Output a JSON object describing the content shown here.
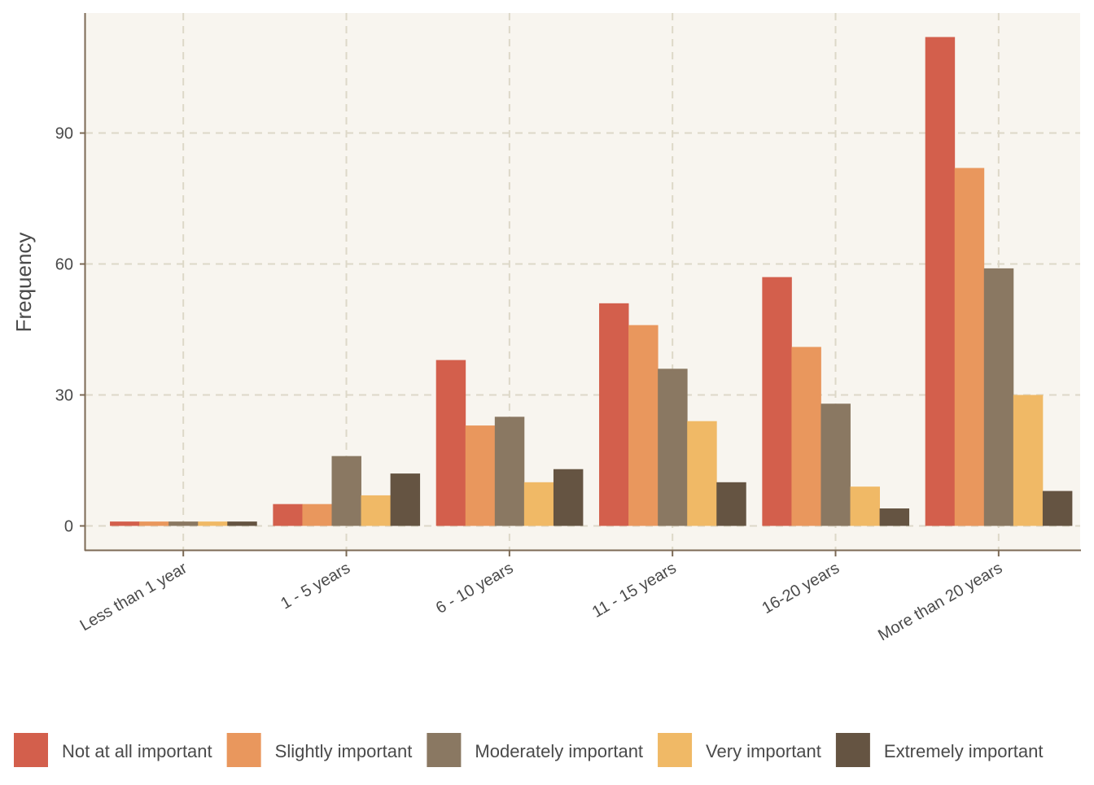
{
  "chart_data": {
    "type": "bar",
    "title": "",
    "xlabel": "",
    "ylabel": "Frequency",
    "categories": [
      "Less than 1 year",
      "1 - 5 years",
      "6 - 10 years",
      "11 - 15 years",
      "16-20 years",
      "More than 20 years"
    ],
    "series": [
      {
        "name": "Not at all important",
        "color": "#d35f4c",
        "values": [
          1,
          5,
          38,
          51,
          57,
          112
        ]
      },
      {
        "name": "Slightly important",
        "color": "#e9975d",
        "values": [
          1,
          5,
          23,
          46,
          41,
          82
        ]
      },
      {
        "name": "Moderately important",
        "color": "#8a7862",
        "values": [
          1,
          16,
          25,
          36,
          28,
          59
        ]
      },
      {
        "name": "Very important",
        "color": "#f0b966",
        "values": [
          1,
          7,
          10,
          24,
          9,
          30
        ]
      },
      {
        "name": "Extremely important",
        "color": "#655442",
        "values": [
          1,
          12,
          13,
          10,
          4,
          8
        ]
      }
    ],
    "yticks": [
      "0",
      "30",
      "60",
      "90"
    ],
    "ylim": [
      -5.5,
      117.5
    ],
    "grid": true,
    "legend_position": "bottom",
    "colors": {
      "panel_background": "#f8f5ef",
      "grid": "#ddd8c8",
      "axis_line": "#7c6a55"
    }
  }
}
